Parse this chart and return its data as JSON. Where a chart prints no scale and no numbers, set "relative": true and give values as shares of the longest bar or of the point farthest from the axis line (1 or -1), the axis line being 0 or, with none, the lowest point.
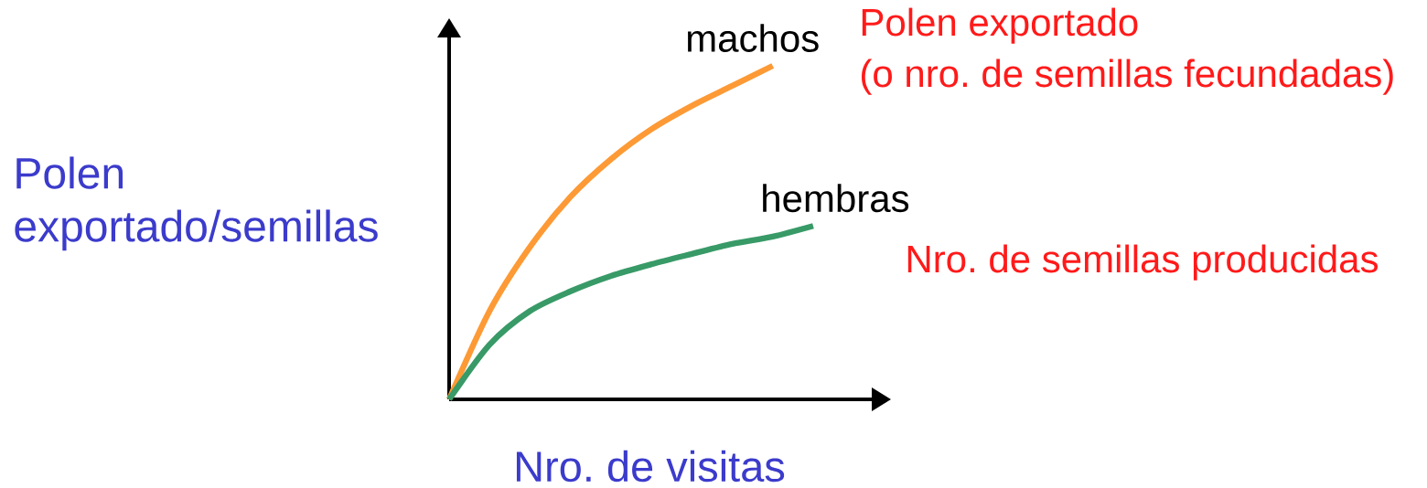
{
  "chart_data": {
    "type": "line",
    "relative": true,
    "xlabel": "Nro. de visitas",
    "ylabel": "Polen exportado/semillas",
    "categories": [
      null,
      null,
      null,
      null,
      null,
      null,
      null,
      null,
      null,
      null
    ],
    "series": [
      {
        "name": "machos",
        "color": "#fd9a35",
        "values": [
          0,
          0.265,
          0.457,
          0.607,
          0.72,
          0.81,
          0.88,
          0.94,
          1.0,
          null
        ]
      },
      {
        "name": "hembras",
        "color": "#389a67",
        "values": [
          0,
          0.164,
          0.265,
          0.324,
          0.37,
          0.405,
          0.436,
          0.466,
          0.488,
          0.52
        ]
      }
    ],
    "annotations": [
      "Polen exportado",
      "(o nro. de semillas fecundadas)",
      "Nro. de semillas producidas"
    ],
    "marker": "none",
    "line_style": "solid"
  }
}
